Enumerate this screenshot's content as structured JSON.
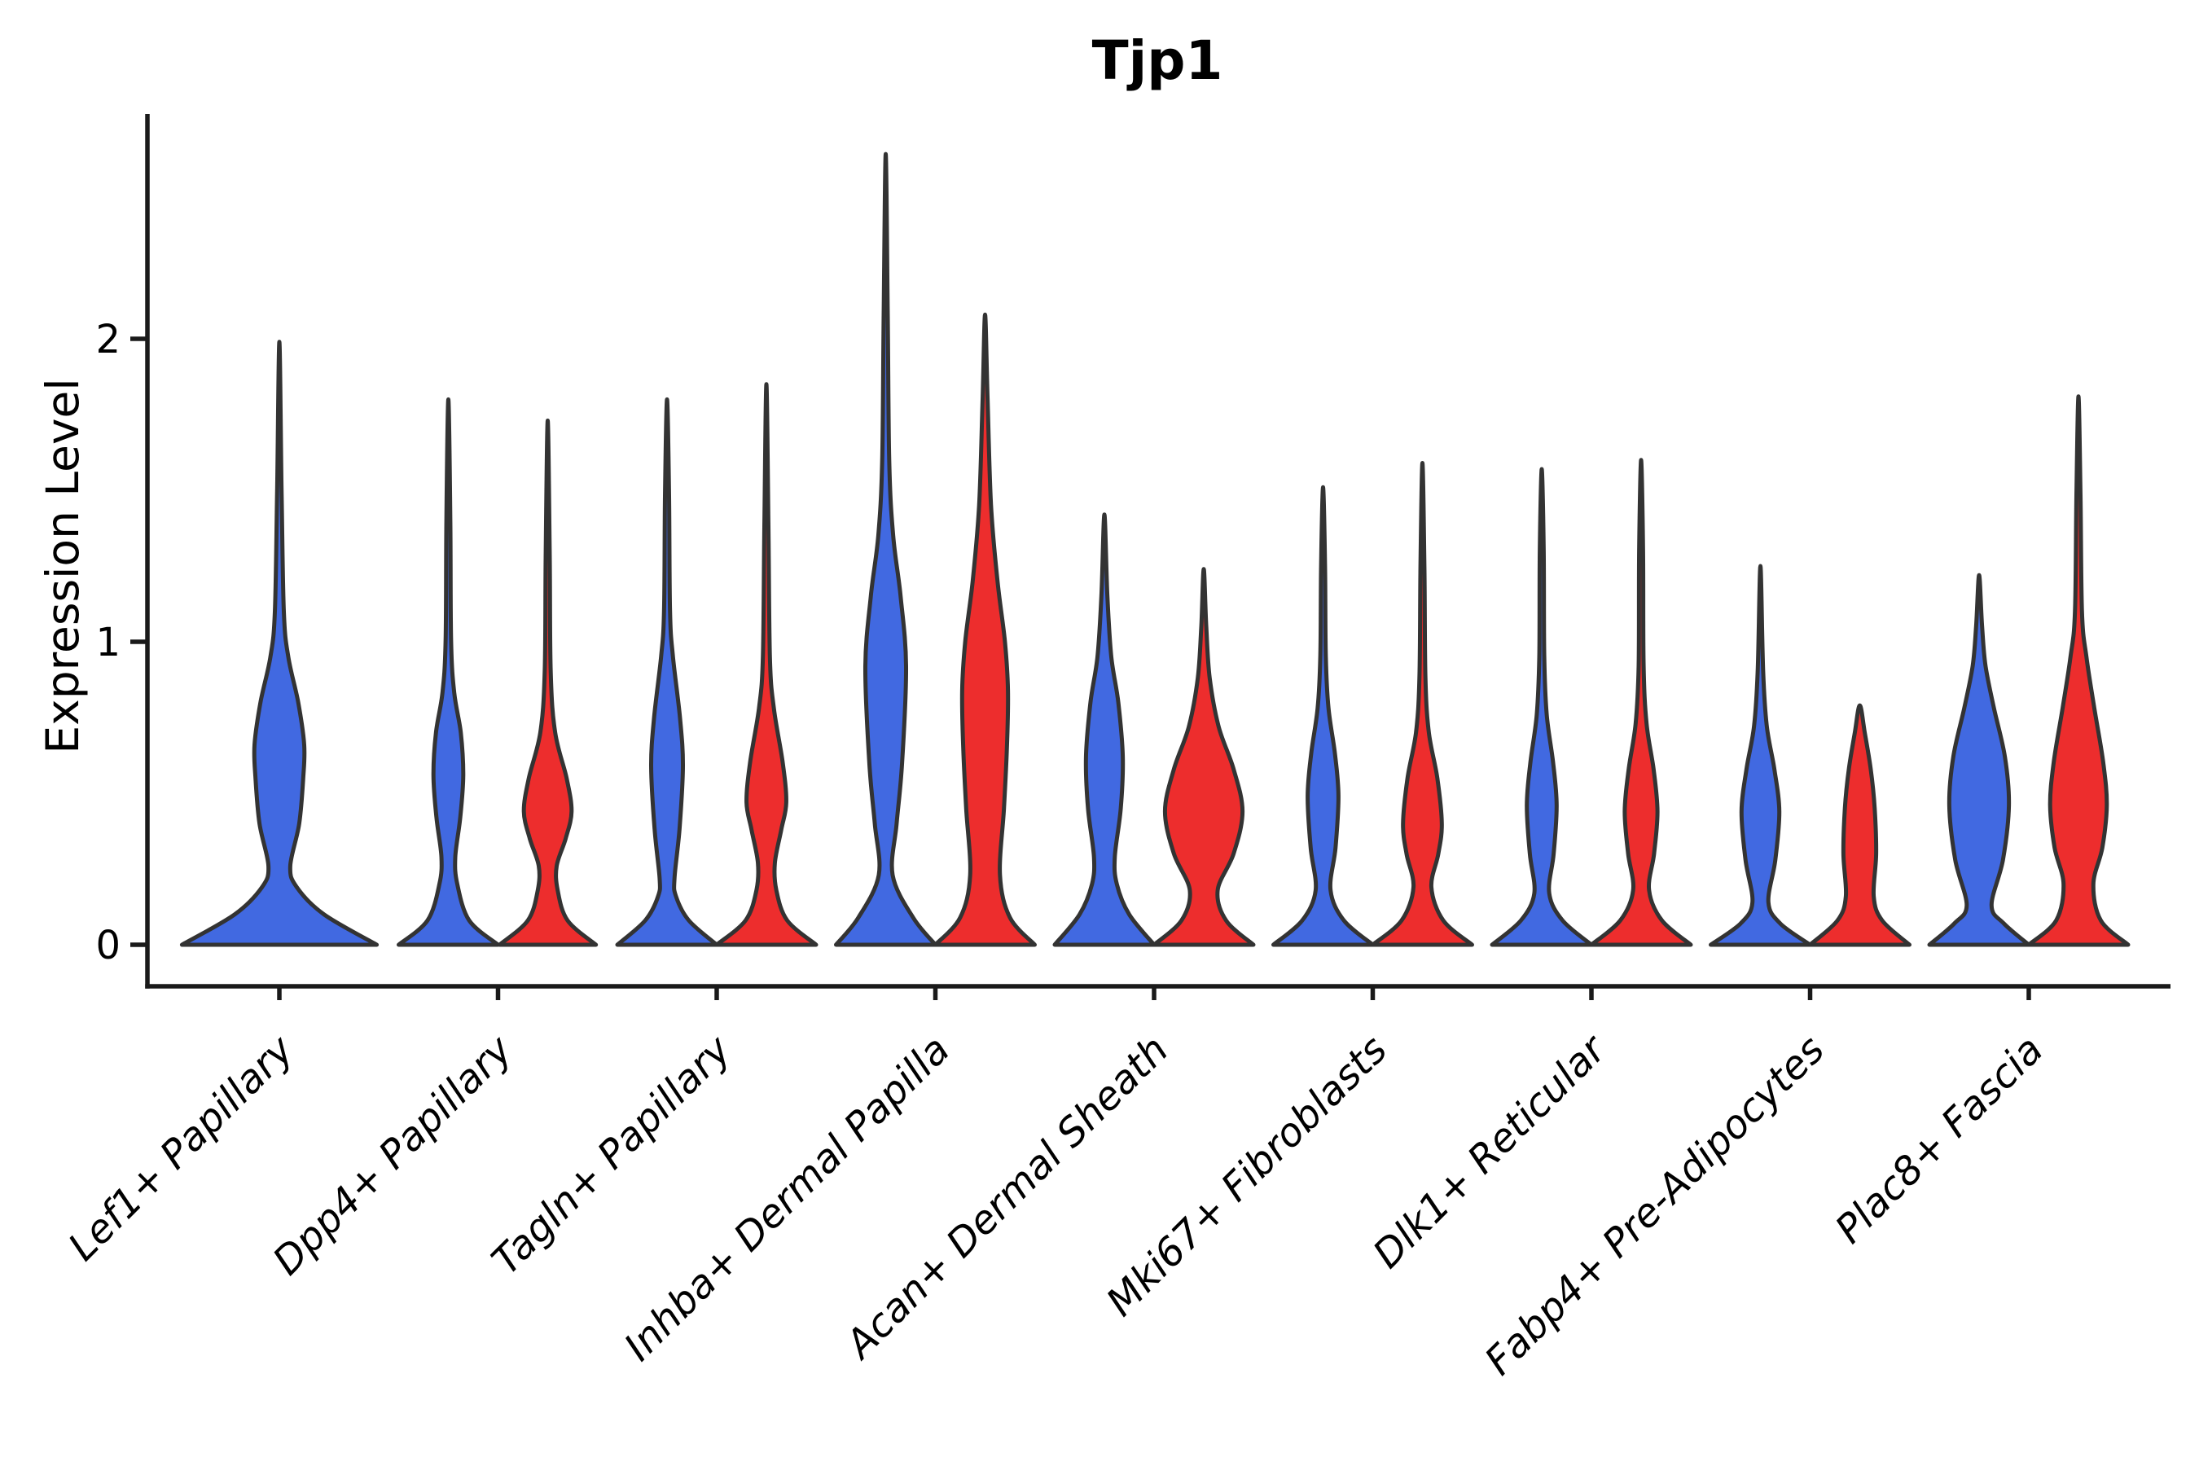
{
  "chart_data": {
    "type": "violin",
    "title": "Tjp1",
    "ylabel": "Expression Level",
    "xlabel": "",
    "yticks": [
      {
        "value": 0,
        "label": "0"
      },
      {
        "value": 1,
        "label": "1"
      },
      {
        "value": 2,
        "label": "2"
      }
    ],
    "ylim": [
      0,
      2.75
    ],
    "x_tick_rotation": 45,
    "grid": "off",
    "legend_position": "none",
    "colors": {
      "blue": "#4169E1",
      "red": "#ED2D2D",
      "outline": "#333333",
      "axis": "#1a1a1a",
      "text": "#000000"
    },
    "categories": [
      "Lef1+ Papillary",
      "Dpp4+ Papillary",
      "Tagln+ Papillary",
      "Inhba+ Dermal Papilla",
      "Acan+ Dermal Sheath",
      "Mki67+ Fibroblasts",
      "Dlk1+ Reticular",
      "Fabp4+ Pre-Adipocytes",
      "Plac8+ Fascia"
    ],
    "violins": [
      {
        "category": "Lef1+ Papillary",
        "blue": {
          "max_expression": 1.99,
          "profile": [
            [
              0,
              1.96
            ],
            [
              0.1,
              0.9
            ],
            [
              0.19,
              0.35
            ],
            [
              0.26,
              0.22
            ],
            [
              0.4,
              0.4
            ],
            [
              0.55,
              0.48
            ],
            [
              0.66,
              0.5
            ],
            [
              0.8,
              0.38
            ],
            [
              0.95,
              0.18
            ],
            [
              1.1,
              0.09
            ],
            [
              1.5,
              0.045
            ],
            [
              1.99,
              0
            ]
          ]
        },
        "red": null
      },
      {
        "category": "Dpp4+ Papillary",
        "blue": {
          "max_expression": 1.8,
          "profile": [
            [
              0,
              1.0
            ],
            [
              0.08,
              0.42
            ],
            [
              0.2,
              0.18
            ],
            [
              0.29,
              0.14
            ],
            [
              0.42,
              0.24
            ],
            [
              0.56,
              0.3
            ],
            [
              0.7,
              0.25
            ],
            [
              0.83,
              0.12
            ],
            [
              1.0,
              0.055
            ],
            [
              1.4,
              0.04
            ],
            [
              1.8,
              0
            ]
          ]
        },
        "red": {
          "max_expression": 1.73,
          "profile": [
            [
              0,
              0.97
            ],
            [
              0.08,
              0.4
            ],
            [
              0.18,
              0.2
            ],
            [
              0.26,
              0.18
            ],
            [
              0.35,
              0.36
            ],
            [
              0.44,
              0.48
            ],
            [
              0.55,
              0.38
            ],
            [
              0.7,
              0.15
            ],
            [
              0.9,
              0.06
            ],
            [
              1.3,
              0.04
            ],
            [
              1.73,
              0
            ]
          ]
        }
      },
      {
        "category": "Tagln+ Papillary",
        "blue": {
          "max_expression": 1.8,
          "profile": [
            [
              0,
              1.0
            ],
            [
              0.08,
              0.44
            ],
            [
              0.16,
              0.18
            ],
            [
              0.22,
              0.15
            ],
            [
              0.38,
              0.25
            ],
            [
              0.59,
              0.32
            ],
            [
              0.75,
              0.26
            ],
            [
              0.95,
              0.12
            ],
            [
              1.1,
              0.06
            ],
            [
              1.5,
              0.04
            ],
            [
              1.8,
              0
            ]
          ]
        },
        "red": {
          "max_expression": 1.85,
          "profile": [
            [
              0,
              1.0
            ],
            [
              0.08,
              0.42
            ],
            [
              0.18,
              0.2
            ],
            [
              0.27,
              0.17
            ],
            [
              0.38,
              0.3
            ],
            [
              0.47,
              0.4
            ],
            [
              0.6,
              0.33
            ],
            [
              0.78,
              0.15
            ],
            [
              0.95,
              0.07
            ],
            [
              1.4,
              0.04
            ],
            [
              1.85,
              0
            ]
          ]
        }
      },
      {
        "category": "Inhba+ Dermal Papilla",
        "blue": {
          "max_expression": 2.61,
          "profile": [
            [
              0,
              1.0
            ],
            [
              0.09,
              0.55
            ],
            [
              0.23,
              0.14
            ],
            [
              0.4,
              0.22
            ],
            [
              0.6,
              0.33
            ],
            [
              0.92,
              0.41
            ],
            [
              1.15,
              0.3
            ],
            [
              1.35,
              0.15
            ],
            [
              1.6,
              0.07
            ],
            [
              2.1,
              0.04
            ],
            [
              2.61,
              0
            ]
          ]
        },
        "red": {
          "max_expression": 2.08,
          "profile": [
            [
              0,
              1.0
            ],
            [
              0.09,
              0.5
            ],
            [
              0.23,
              0.3
            ],
            [
              0.45,
              0.38
            ],
            [
              0.65,
              0.44
            ],
            [
              0.84,
              0.46
            ],
            [
              1.0,
              0.4
            ],
            [
              1.2,
              0.25
            ],
            [
              1.45,
              0.12
            ],
            [
              1.8,
              0.05
            ],
            [
              2.08,
              0
            ]
          ]
        }
      },
      {
        "category": "Acan+ Dermal Sheath",
        "blue": {
          "max_expression": 1.42,
          "profile": [
            [
              0,
              1.0
            ],
            [
              0.1,
              0.5
            ],
            [
              0.2,
              0.25
            ],
            [
              0.29,
              0.21
            ],
            [
              0.45,
              0.33
            ],
            [
              0.62,
              0.37
            ],
            [
              0.8,
              0.28
            ],
            [
              0.95,
              0.14
            ],
            [
              1.15,
              0.06
            ],
            [
              1.42,
              0
            ]
          ]
        },
        "red": {
          "max_expression": 1.24,
          "profile": [
            [
              0,
              1.0
            ],
            [
              0.08,
              0.45
            ],
            [
              0.18,
              0.28
            ],
            [
              0.3,
              0.6
            ],
            [
              0.44,
              0.78
            ],
            [
              0.58,
              0.6
            ],
            [
              0.72,
              0.3
            ],
            [
              0.88,
              0.12
            ],
            [
              1.05,
              0.05
            ],
            [
              1.24,
              0
            ]
          ]
        }
      },
      {
        "category": "Mki67+ Fibroblasts",
        "blue": {
          "max_expression": 1.51,
          "profile": [
            [
              0,
              1.0
            ],
            [
              0.08,
              0.42
            ],
            [
              0.18,
              0.15
            ],
            [
              0.32,
              0.25
            ],
            [
              0.49,
              0.31
            ],
            [
              0.63,
              0.24
            ],
            [
              0.78,
              0.11
            ],
            [
              0.95,
              0.055
            ],
            [
              1.25,
              0.04
            ],
            [
              1.51,
              0
            ]
          ]
        },
        "red": {
          "max_expression": 1.59,
          "profile": [
            [
              0,
              1.0
            ],
            [
              0.08,
              0.42
            ],
            [
              0.19,
              0.18
            ],
            [
              0.3,
              0.32
            ],
            [
              0.4,
              0.39
            ],
            [
              0.55,
              0.3
            ],
            [
              0.7,
              0.13
            ],
            [
              0.88,
              0.06
            ],
            [
              1.25,
              0.04
            ],
            [
              1.59,
              0
            ]
          ]
        }
      },
      {
        "category": "Dlk1+ Reticular",
        "blue": {
          "max_expression": 1.57,
          "profile": [
            [
              0,
              1.0
            ],
            [
              0.08,
              0.42
            ],
            [
              0.17,
              0.15
            ],
            [
              0.3,
              0.24
            ],
            [
              0.46,
              0.3
            ],
            [
              0.6,
              0.23
            ],
            [
              0.76,
              0.1
            ],
            [
              0.95,
              0.05
            ],
            [
              1.3,
              0.04
            ],
            [
              1.57,
              0
            ]
          ]
        },
        "red": {
          "max_expression": 1.6,
          "profile": [
            [
              0,
              1.0
            ],
            [
              0.08,
              0.42
            ],
            [
              0.18,
              0.16
            ],
            [
              0.3,
              0.26
            ],
            [
              0.44,
              0.33
            ],
            [
              0.58,
              0.25
            ],
            [
              0.73,
              0.11
            ],
            [
              0.92,
              0.05
            ],
            [
              1.3,
              0.04
            ],
            [
              1.6,
              0
            ]
          ]
        }
      },
      {
        "category": "Fabp4+ Pre-Adipocytes",
        "blue": {
          "max_expression": 1.25,
          "profile": [
            [
              0,
              1.0
            ],
            [
              0.07,
              0.4
            ],
            [
              0.14,
              0.16
            ],
            [
              0.28,
              0.3
            ],
            [
              0.44,
              0.38
            ],
            [
              0.58,
              0.28
            ],
            [
              0.72,
              0.13
            ],
            [
              0.9,
              0.055
            ],
            [
              1.25,
              0
            ]
          ]
        },
        "red": {
          "max_expression": 0.79,
          "profile": [
            [
              0,
              1.0
            ],
            [
              0.08,
              0.45
            ],
            [
              0.16,
              0.28
            ],
            [
              0.3,
              0.33
            ],
            [
              0.45,
              0.3
            ],
            [
              0.58,
              0.22
            ],
            [
              0.7,
              0.1
            ],
            [
              0.79,
              0
            ]
          ]
        }
      },
      {
        "category": "Plac8+ Fascia",
        "blue": {
          "max_expression": 1.22,
          "profile": [
            [
              0,
              1.0
            ],
            [
              0.07,
              0.5
            ],
            [
              0.13,
              0.25
            ],
            [
              0.28,
              0.48
            ],
            [
              0.46,
              0.6
            ],
            [
              0.62,
              0.52
            ],
            [
              0.78,
              0.3
            ],
            [
              0.92,
              0.13
            ],
            [
              1.05,
              0.06
            ],
            [
              1.22,
              0
            ]
          ]
        },
        "red": {
          "max_expression": 1.81,
          "profile": [
            [
              0,
              1.0
            ],
            [
              0.08,
              0.45
            ],
            [
              0.2,
              0.3
            ],
            [
              0.32,
              0.48
            ],
            [
              0.46,
              0.57
            ],
            [
              0.6,
              0.5
            ],
            [
              0.78,
              0.32
            ],
            [
              0.95,
              0.16
            ],
            [
              1.1,
              0.07
            ],
            [
              1.5,
              0.04
            ],
            [
              1.81,
              0
            ]
          ]
        }
      }
    ]
  }
}
